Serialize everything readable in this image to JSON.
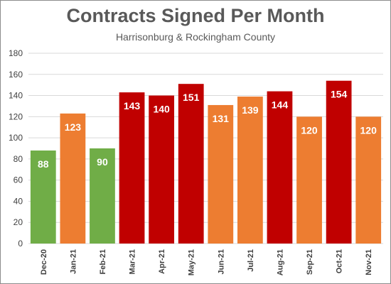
{
  "chart_data": {
    "type": "bar",
    "title": "Contracts Signed Per Month",
    "subtitle": "Harrisonburg & Rockingham County",
    "categories": [
      "Dec-20",
      "Jan-21",
      "Feb-21",
      "Mar-21",
      "Apr-21",
      "May-21",
      "Jun-21",
      "Jul-21",
      "Aug-21",
      "Sep-21",
      "Oct-21",
      "Nov-21"
    ],
    "values": [
      88,
      123,
      90,
      143,
      140,
      151,
      131,
      139,
      144,
      120,
      154,
      120
    ],
    "bar_colors": [
      "#70ad47",
      "#ed7d31",
      "#70ad47",
      "#c00000",
      "#c00000",
      "#c00000",
      "#ed7d31",
      "#ed7d31",
      "#c00000",
      "#ed7d31",
      "#c00000",
      "#ed7d31"
    ],
    "ylim": [
      0,
      180
    ],
    "yticks": [
      0,
      20,
      40,
      60,
      80,
      100,
      120,
      140,
      160,
      180
    ],
    "grid": true,
    "data_labels": true,
    "colors": {
      "title": "#595959",
      "grid": "#d9d9d9",
      "axis_text": "#404040",
      "label_text": "#ffffff"
    }
  }
}
